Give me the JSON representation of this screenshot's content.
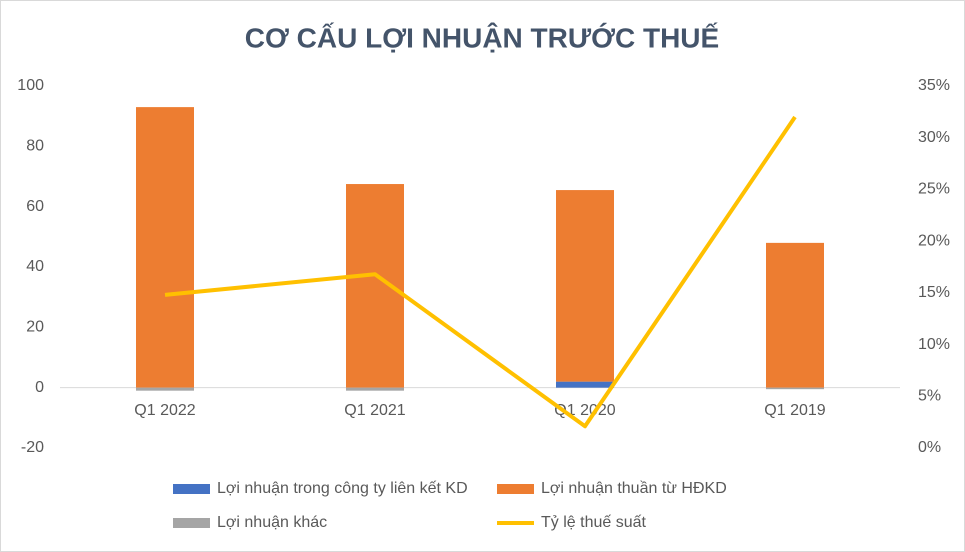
{
  "chart_data": {
    "type": "bar",
    "stacked": true,
    "title": "CƠ CẤU LỢI NHUẬN TRƯỚC THUẾ",
    "categories": [
      "Q1 2022",
      "Q1 2021",
      "Q1 2020",
      "Q1 2019"
    ],
    "series": [
      {
        "name": "Lợi nhuận trong công ty liên kết KD",
        "color": "#4472c4",
        "values": [
          0,
          0,
          2,
          0
        ]
      },
      {
        "name": "Lợi nhuận thuần từ HĐKD",
        "color": "#ed7d31",
        "values": [
          93,
          67.5,
          63.5,
          48
        ]
      },
      {
        "name": "Lợi nhuận khác",
        "color": "#a5a5a5",
        "values": [
          -1,
          -1,
          0,
          -0.5
        ]
      },
      {
        "name": "Tỷ lệ thuế suất",
        "color": "#ffc000",
        "type": "line",
        "axis": "y2",
        "values": [
          14.8,
          16.8,
          2.1,
          32
        ]
      }
    ],
    "ylim": [
      -20,
      100
    ],
    "yticks": [
      -20,
      0,
      20,
      40,
      60,
      80,
      100
    ],
    "y2lim": [
      0,
      35
    ],
    "y2ticks": [
      {
        "value": 0,
        "label": "0%"
      },
      {
        "value": 5,
        "label": "5%"
      },
      {
        "value": 10,
        "label": "10%"
      },
      {
        "value": 15,
        "label": "15%"
      },
      {
        "value": 20,
        "label": "20%"
      },
      {
        "value": 25,
        "label": "25%"
      },
      {
        "value": 30,
        "label": "30%"
      },
      {
        "value": 35,
        "label": "35%"
      }
    ],
    "grid": false,
    "legend": "bottom"
  }
}
